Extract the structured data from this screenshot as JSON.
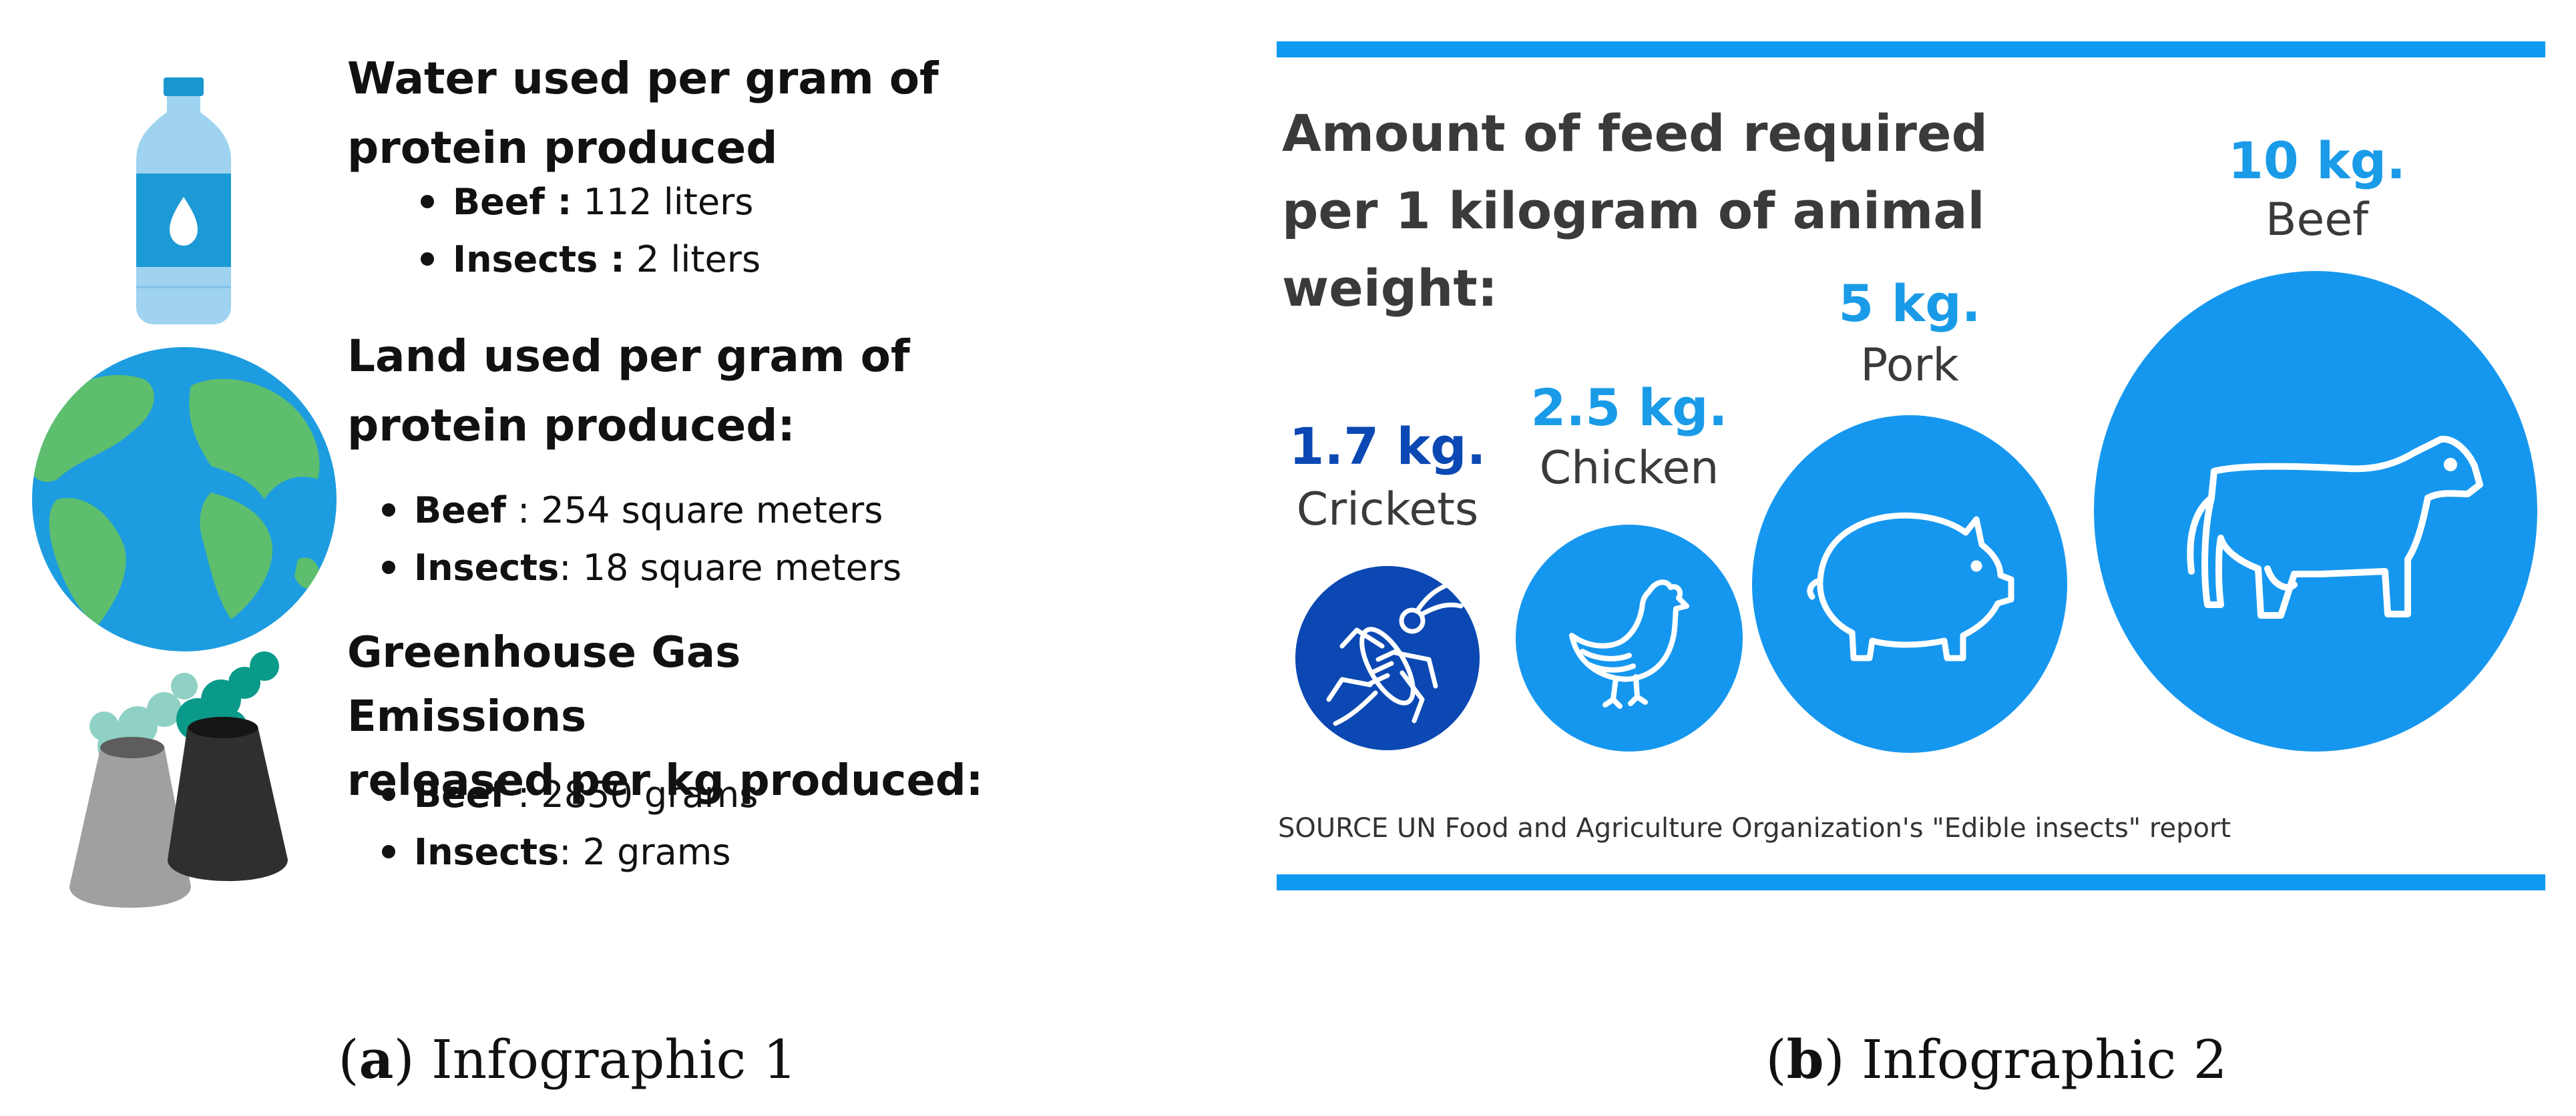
{
  "infographic1": {
    "water": {
      "title_line1": "Water used per gram of",
      "title_line2": "protein produced",
      "items": [
        {
          "label": "Beef :",
          "value": " 112 liters"
        },
        {
          "label": "Insects :",
          "value": " 2 liters"
        }
      ]
    },
    "land": {
      "title_line1": "Land used per gram of",
      "title_line2": "protein produced:",
      "items": [
        {
          "label": "Beef",
          "value": " : 254 square meters"
        },
        {
          "label": "Insects",
          "value": ": 18 square meters"
        }
      ]
    },
    "emissions": {
      "title_line1": "Greenhouse Gas Emissions",
      "title_line2": "released per kg produced:",
      "items": [
        {
          "label": "Beef",
          "value": " :  2850 grams"
        },
        {
          "label": "Insects",
          "value": ": 2 grams"
        }
      ]
    },
    "icons": [
      "water-bottle-icon",
      "earth-globe-icon",
      "smokestack-icon"
    ]
  },
  "infographic2": {
    "title_line1": "Amount of feed required",
    "title_line2": "per 1 kilogram of animal weight:",
    "animals": [
      {
        "amount": "1.7 kg.",
        "name": "Crickets",
        "icon": "cricket-icon",
        "color": "#0b48b3",
        "amount_color": "#0b48b3"
      },
      {
        "amount": "2.5 kg.",
        "name": "Chicken",
        "icon": "chicken-icon",
        "color": "#1697ef",
        "amount_color": "#1a9be8"
      },
      {
        "amount": "5 kg.",
        "name": "Pork",
        "icon": "pig-icon",
        "color": "#1697ef",
        "amount_color": "#1a9be8"
      },
      {
        "amount": "10 kg.",
        "name": "Beef",
        "icon": "cow-icon",
        "color": "#1697ef",
        "amount_color": "#1a9be8"
      }
    ],
    "source": "SOURCE UN Food and Agriculture Organization's \"Edible insects\" report",
    "accent_color": "#0e9af2"
  },
  "captions": [
    {
      "letter": "a",
      "text": ") Infographic 1"
    },
    {
      "letter": "b",
      "text": ") Infographic 2"
    }
  ]
}
